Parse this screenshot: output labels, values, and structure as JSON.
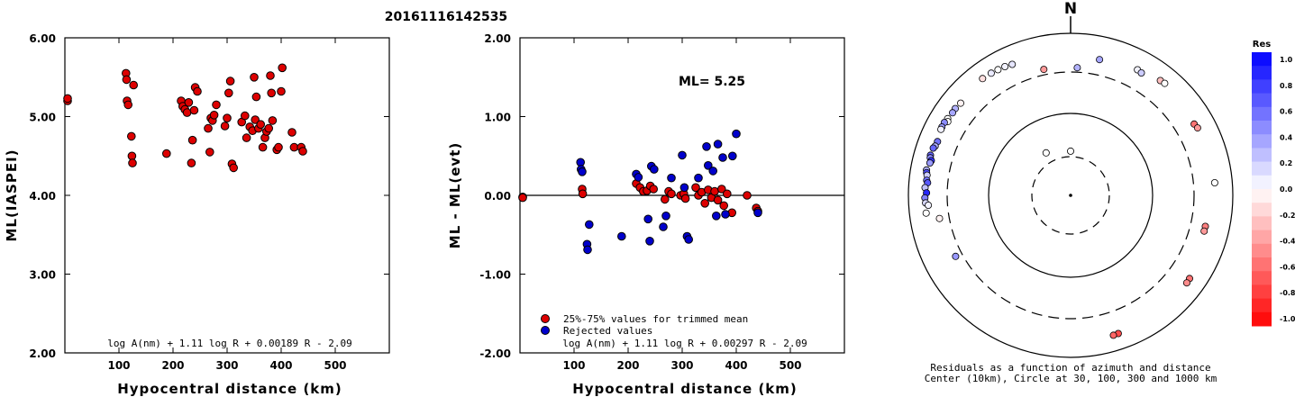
{
  "event_id": "20161116142535",
  "chart_data": [
    {
      "type": "scatter",
      "xlabel": "Hypocentral distance (km)",
      "ylabel": "ML(IASPEI)",
      "xlim": [
        0,
        600
      ],
      "ylim": [
        2.0,
        6.0
      ],
      "x_ticks": [
        "100",
        "200",
        "300",
        "400",
        "500"
      ],
      "y_ticks": [
        "2.00",
        "3.00",
        "4.00",
        "5.00",
        "6.00"
      ],
      "formula": "log A(nm) + 1.11 log R + 0.00189 R - 2.09",
      "series": [
        {
          "color": "#dd0000",
          "points": [
            [
              5,
              5.2
            ],
            [
              5,
              5.23
            ],
            [
              113,
              5.55
            ],
            [
              114,
              5.47
            ],
            [
              115,
              5.2
            ],
            [
              117,
              5.15
            ],
            [
              123,
              4.75
            ],
            [
              124,
              4.5
            ],
            [
              125,
              4.41
            ],
            [
              127,
              5.4
            ],
            [
              188,
              4.53
            ],
            [
              215,
              5.2
            ],
            [
              218,
              5.13
            ],
            [
              222,
              5.09
            ],
            [
              226,
              5.05
            ],
            [
              229,
              5.18
            ],
            [
              234,
              4.41
            ],
            [
              236,
              4.7
            ],
            [
              239,
              5.08
            ],
            [
              241,
              5.37
            ],
            [
              245,
              5.32
            ],
            [
              265,
              4.85
            ],
            [
              268,
              4.55
            ],
            [
              270,
              4.98
            ],
            [
              273,
              4.95
            ],
            [
              276,
              5.02
            ],
            [
              280,
              5.15
            ],
            [
              296,
              4.88
            ],
            [
              300,
              4.98
            ],
            [
              303,
              5.3
            ],
            [
              306,
              5.45
            ],
            [
              309,
              4.4
            ],
            [
              312,
              4.35
            ],
            [
              327,
              4.93
            ],
            [
              333,
              5.01
            ],
            [
              336,
              4.73
            ],
            [
              342,
              4.87
            ],
            [
              347,
              4.82
            ],
            [
              350,
              5.5
            ],
            [
              352,
              4.96
            ],
            [
              354,
              5.25
            ],
            [
              358,
              4.85
            ],
            [
              362,
              4.9
            ],
            [
              366,
              4.61
            ],
            [
              370,
              4.73
            ],
            [
              373,
              4.81
            ],
            [
              377,
              4.85
            ],
            [
              380,
              5.52
            ],
            [
              382,
              5.3
            ],
            [
              384,
              4.95
            ],
            [
              392,
              4.58
            ],
            [
              395,
              4.61
            ],
            [
              400,
              5.32
            ],
            [
              402,
              5.62
            ],
            [
              420,
              4.8
            ],
            [
              424,
              4.61
            ],
            [
              437,
              4.61
            ],
            [
              440,
              4.56
            ]
          ]
        }
      ]
    },
    {
      "type": "scatter",
      "xlabel": "Hypocentral distance (km)",
      "ylabel": "ML - ML(evt)",
      "xlim": [
        0,
        600
      ],
      "ylim": [
        -2.0,
        2.0
      ],
      "x_ticks": [
        "100",
        "200",
        "300",
        "400",
        "500"
      ],
      "y_ticks": [
        "-2.00",
        "-1.00",
        "0.00",
        "1.00",
        "2.00"
      ],
      "annotation": "ML= 5.25",
      "formula": "log A(nm) + 1.11 log R + 0.00297 R - 2.09",
      "series": [
        {
          "name": "25%-75% values for trimmed mean",
          "color": "#dd0000",
          "points": [
            [
              5,
              -0.02
            ],
            [
              5,
              -0.03
            ],
            [
              115,
              0.08
            ],
            [
              116,
              0.02
            ],
            [
              215,
              0.15
            ],
            [
              222,
              0.1
            ],
            [
              228,
              0.05
            ],
            [
              235,
              0.06
            ],
            [
              241,
              0.12
            ],
            [
              247,
              0.08
            ],
            [
              268,
              -0.05
            ],
            [
              275,
              0.05
            ],
            [
              280,
              0.02
            ],
            [
              297,
              0.0
            ],
            [
              303,
              0.02
            ],
            [
              306,
              -0.04
            ],
            [
              325,
              0.1
            ],
            [
              330,
              0.0
            ],
            [
              336,
              0.04
            ],
            [
              342,
              -0.1
            ],
            [
              348,
              0.07
            ],
            [
              354,
              -0.03
            ],
            [
              360,
              0.05
            ],
            [
              366,
              -0.06
            ],
            [
              373,
              0.08
            ],
            [
              377,
              -0.13
            ],
            [
              383,
              0.02
            ],
            [
              392,
              -0.22
            ],
            [
              420,
              0.0
            ],
            [
              437,
              -0.16
            ],
            [
              440,
              -0.2
            ]
          ]
        },
        {
          "name": "Rejected values",
          "color": "#0000cc",
          "points": [
            [
              112,
              0.42
            ],
            [
              113,
              0.33
            ],
            [
              115,
              0.3
            ],
            [
              124,
              -0.62
            ],
            [
              125,
              -0.69
            ],
            [
              128,
              -0.37
            ],
            [
              188,
              -0.52
            ],
            [
              215,
              0.27
            ],
            [
              219,
              0.23
            ],
            [
              237,
              -0.3
            ],
            [
              240,
              -0.58
            ],
            [
              243,
              0.37
            ],
            [
              248,
              0.33
            ],
            [
              265,
              -0.4
            ],
            [
              270,
              -0.26
            ],
            [
              280,
              0.22
            ],
            [
              300,
              0.51
            ],
            [
              304,
              0.1
            ],
            [
              309,
              -0.52
            ],
            [
              312,
              -0.56
            ],
            [
              330,
              0.22
            ],
            [
              345,
              0.62
            ],
            [
              348,
              0.38
            ],
            [
              357,
              0.31
            ],
            [
              363,
              -0.26
            ],
            [
              366,
              0.65
            ],
            [
              375,
              0.48
            ],
            [
              380,
              -0.24
            ],
            [
              393,
              0.5
            ],
            [
              400,
              0.78
            ],
            [
              440,
              -0.22
            ]
          ]
        }
      ]
    }
  ],
  "polar_plot": {
    "north_label": "N",
    "caption_line1": "Residuals as a function of azimuth and distance",
    "caption_line2": "Center (10km), Circle at 30, 100, 300 and 1000 km",
    "stations": [
      {
        "az": 336,
        "dist": 560,
        "res": 0.1
      },
      {
        "az": 333,
        "dist": 580,
        "res": 0.05
      },
      {
        "az": 330,
        "dist": 590,
        "res": 0.0
      },
      {
        "az": 327,
        "dist": 600,
        "res": 0.08
      },
      {
        "az": 323,
        "dist": 610,
        "res": -0.12
      },
      {
        "az": 310,
        "dist": 560,
        "res": -0.05
      },
      {
        "az": 307,
        "dist": 575,
        "res": 0.3
      },
      {
        "az": 305,
        "dist": 570,
        "res": 0.35
      },
      {
        "az": 302,
        "dist": 585,
        "res": 0.0
      },
      {
        "az": 301,
        "dist": 555,
        "res": 0.0
      },
      {
        "az": 300,
        "dist": 600,
        "res": 0.45
      },
      {
        "az": 298,
        "dist": 600,
        "res": 0.38
      },
      {
        "az": 297,
        "dist": 595,
        "res": 0.05
      },
      {
        "az": 292,
        "dist": 560,
        "res": 0.55
      },
      {
        "az": 290,
        "dist": 570,
        "res": 0.3
      },
      {
        "az": 289,
        "dist": 590,
        "res": 0.6
      },
      {
        "az": 286,
        "dist": 600,
        "res": 0.6
      },
      {
        "az": 285,
        "dist": 590,
        "res": 0.45
      },
      {
        "az": 284,
        "dist": 560,
        "res": 0.8
      },
      {
        "az": 283,
        "dist": 575,
        "res": 0.4
      },
      {
        "az": 280,
        "dist": 610,
        "res": 0.3
      },
      {
        "az": 279,
        "dist": 600,
        "res": 0.7
      },
      {
        "az": 278,
        "dist": 585,
        "res": 0.2
      },
      {
        "az": 276,
        "dist": 580,
        "res": 0.55
      },
      {
        "az": 275,
        "dist": 560,
        "res": 0.65
      },
      {
        "az": 273,
        "dist": 600,
        "res": 0.25
      },
      {
        "az": 271,
        "dist": 570,
        "res": 0.85
      },
      {
        "az": 269,
        "dist": 600,
        "res": 0.5
      },
      {
        "az": 267,
        "dist": 590,
        "res": 0.15
      },
      {
        "az": 266,
        "dist": 545,
        "res": 0.05
      },
      {
        "az": 263,
        "dist": 595,
        "res": 0.0
      },
      {
        "az": 260,
        "dist": 405,
        "res": -0.05
      },
      {
        "az": 242,
        "dist": 370,
        "res": 0.4
      },
      {
        "az": 12,
        "dist": 485,
        "res": 0.35
      },
      {
        "az": 28,
        "dist": 540,
        "res": 0.05
      },
      {
        "az": 30,
        "dist": 525,
        "res": 0.2
      },
      {
        "az": 38,
        "dist": 600,
        "res": -0.25
      },
      {
        "az": 40,
        "dist": 610,
        "res": 0.0
      },
      {
        "az": 348,
        "dist": 355,
        "res": -0.4
      },
      {
        "az": 3,
        "dist": 345,
        "res": 0.3
      },
      {
        "az": 60,
        "dist": 545,
        "res": -0.55
      },
      {
        "az": 62,
        "dist": 565,
        "res": -0.4
      },
      {
        "az": 85,
        "dist": 580,
        "res": 0.0
      },
      {
        "az": 103,
        "dist": 475,
        "res": -0.5
      },
      {
        "az": 105,
        "dist": 475,
        "res": -0.4
      },
      {
        "az": 125,
        "dist": 590,
        "res": -0.55
      },
      {
        "az": 127,
        "dist": 595,
        "res": -0.45
      },
      {
        "az": 161,
        "dist": 610,
        "res": -0.7
      },
      {
        "az": 163,
        "dist": 612,
        "res": -0.6
      },
      {
        "az": 0,
        "dist": 35,
        "res": 0.0
      },
      {
        "az": 330,
        "dist": 40,
        "res": 0.0
      }
    ]
  },
  "colorbar": {
    "title": "Res",
    "labels": [
      "1.0",
      "0.8",
      "0.6",
      "0.4",
      "0.2",
      "0.0",
      "-0.2",
      "-0.4",
      "-0.6",
      "-0.8",
      "-1.0"
    ]
  }
}
